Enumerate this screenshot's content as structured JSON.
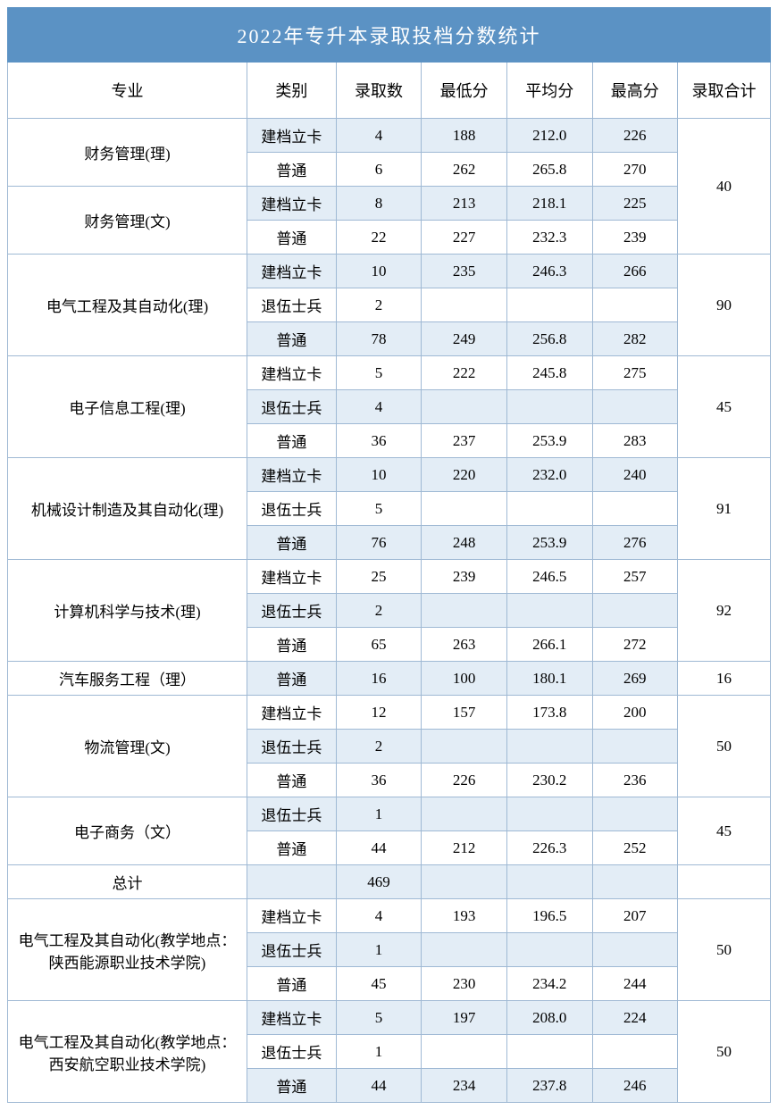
{
  "title": "2022年专升本录取投档分数统计",
  "colors": {
    "header_bg": "#5b92c4",
    "header_text": "#ffffff",
    "band_bg": "#e3edf6",
    "border": "#9fb9d4"
  },
  "columns": [
    "专业",
    "类别",
    "录取数",
    "最低分",
    "平均分",
    "最高分",
    "录取合计"
  ],
  "groups": [
    {
      "total": "40",
      "majors": [
        {
          "name": "财务管理(理)",
          "rows": [
            {
              "cat": "建档立卡",
              "n": "4",
              "min": "188",
              "avg": "212.0",
              "max": "226"
            },
            {
              "cat": "普通",
              "n": "6",
              "min": "262",
              "avg": "265.8",
              "max": "270"
            }
          ]
        },
        {
          "name": "财务管理(文)",
          "rows": [
            {
              "cat": "建档立卡",
              "n": "8",
              "min": "213",
              "avg": "218.1",
              "max": "225"
            },
            {
              "cat": "普通",
              "n": "22",
              "min": "227",
              "avg": "232.3",
              "max": "239"
            }
          ]
        }
      ]
    },
    {
      "total": "90",
      "majors": [
        {
          "name": "电气工程及其自动化(理)",
          "rows": [
            {
              "cat": "建档立卡",
              "n": "10",
              "min": "235",
              "avg": "246.3",
              "max": "266"
            },
            {
              "cat": "退伍士兵",
              "n": "2",
              "min": "",
              "avg": "",
              "max": ""
            },
            {
              "cat": "普通",
              "n": "78",
              "min": "249",
              "avg": "256.8",
              "max": "282"
            }
          ]
        }
      ]
    },
    {
      "total": "45",
      "majors": [
        {
          "name": "电子信息工程(理)",
          "rows": [
            {
              "cat": "建档立卡",
              "n": "5",
              "min": "222",
              "avg": "245.8",
              "max": "275"
            },
            {
              "cat": "退伍士兵",
              "n": "4",
              "min": "",
              "avg": "",
              "max": ""
            },
            {
              "cat": "普通",
              "n": "36",
              "min": "237",
              "avg": "253.9",
              "max": "283"
            }
          ]
        }
      ]
    },
    {
      "total": "91",
      "majors": [
        {
          "name": "机械设计制造及其自动化(理)",
          "rows": [
            {
              "cat": "建档立卡",
              "n": "10",
              "min": "220",
              "avg": "232.0",
              "max": "240"
            },
            {
              "cat": "退伍士兵",
              "n": "5",
              "min": "",
              "avg": "",
              "max": ""
            },
            {
              "cat": "普通",
              "n": "76",
              "min": "248",
              "avg": "253.9",
              "max": "276"
            }
          ]
        }
      ]
    },
    {
      "total": "92",
      "majors": [
        {
          "name": "计算机科学与技术(理)",
          "rows": [
            {
              "cat": "建档立卡",
              "n": "25",
              "min": "239",
              "avg": "246.5",
              "max": "257"
            },
            {
              "cat": "退伍士兵",
              "n": "2",
              "min": "",
              "avg": "",
              "max": ""
            },
            {
              "cat": "普通",
              "n": "65",
              "min": "263",
              "avg": "266.1",
              "max": "272"
            }
          ]
        }
      ]
    },
    {
      "total": "16",
      "majors": [
        {
          "name": "汽车服务工程（理）",
          "rows": [
            {
              "cat": "普通",
              "n": "16",
              "min": "100",
              "avg": "180.1",
              "max": "269"
            }
          ]
        }
      ]
    },
    {
      "total": "50",
      "majors": [
        {
          "name": "物流管理(文)",
          "rows": [
            {
              "cat": "建档立卡",
              "n": "12",
              "min": "157",
              "avg": "173.8",
              "max": "200"
            },
            {
              "cat": "退伍士兵",
              "n": "2",
              "min": "",
              "avg": "",
              "max": ""
            },
            {
              "cat": "普通",
              "n": "36",
              "min": "226",
              "avg": "230.2",
              "max": "236"
            }
          ]
        }
      ]
    },
    {
      "total": "45",
      "majors": [
        {
          "name": "电子商务（文）",
          "rows": [
            {
              "cat": "退伍士兵",
              "n": "1",
              "min": "",
              "avg": "",
              "max": ""
            },
            {
              "cat": "普通",
              "n": "44",
              "min": "212",
              "avg": "226.3",
              "max": "252"
            }
          ]
        }
      ]
    }
  ],
  "totals_row": {
    "label": "总计",
    "n": "469"
  },
  "extra_groups": [
    {
      "total": "50",
      "majors": [
        {
          "name": "电气工程及其自动化(教学地点：陕西能源职业技术学院)",
          "rows": [
            {
              "cat": "建档立卡",
              "n": "4",
              "min": "193",
              "avg": "196.5",
              "max": "207"
            },
            {
              "cat": "退伍士兵",
              "n": "1",
              "min": "",
              "avg": "",
              "max": ""
            },
            {
              "cat": "普通",
              "n": "45",
              "min": "230",
              "avg": "234.2",
              "max": "244"
            }
          ]
        }
      ]
    },
    {
      "total": "50",
      "majors": [
        {
          "name": "电气工程及其自动化(教学地点：西安航空职业技术学院)",
          "rows": [
            {
              "cat": "建档立卡",
              "n": "5",
              "min": "197",
              "avg": "208.0",
              "max": "224"
            },
            {
              "cat": "退伍士兵",
              "n": "1",
              "min": "",
              "avg": "",
              "max": ""
            },
            {
              "cat": "普通",
              "n": "44",
              "min": "234",
              "avg": "237.8",
              "max": "246"
            }
          ]
        }
      ]
    }
  ],
  "typography": {
    "title_fontsize": 22,
    "header_fontsize": 18,
    "cell_fontsize": 17
  }
}
